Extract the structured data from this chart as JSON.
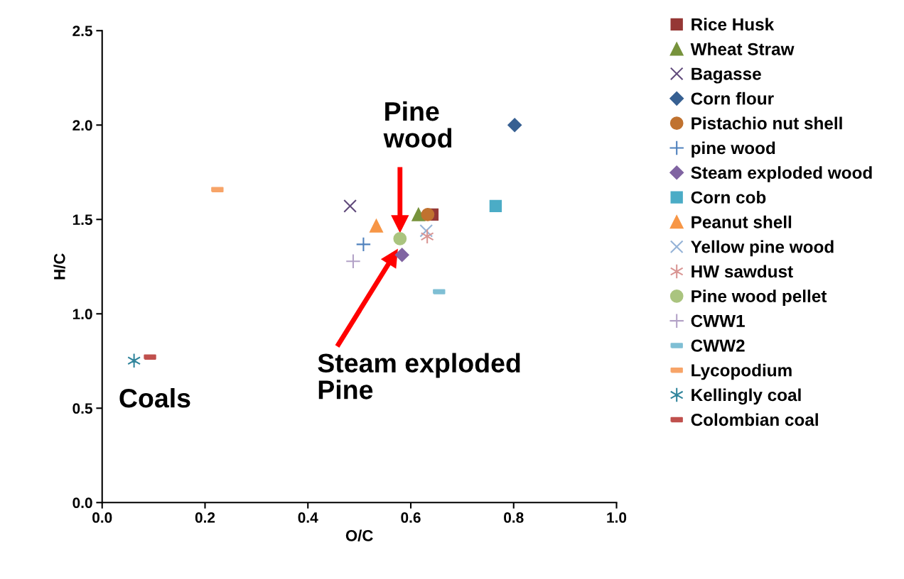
{
  "chart_data": {
    "type": "scatter",
    "xlabel": "O/C",
    "ylabel": "H/C",
    "xlim": [
      0,
      1
    ],
    "ylim": [
      0,
      2.5
    ],
    "xticks": [
      {
        "value": 0,
        "label": "0.0"
      },
      {
        "value": 0.2,
        "label": "0.2"
      },
      {
        "value": 0.4,
        "label": "0.4"
      },
      {
        "value": 0.6,
        "label": "0.6"
      },
      {
        "value": 0.8,
        "label": "0.8"
      },
      {
        "value": 1,
        "label": "1.0"
      }
    ],
    "yticks": [
      {
        "value": 0,
        "label": "0.0"
      },
      {
        "value": 0.5,
        "label": "0.5"
      },
      {
        "value": 1,
        "label": "1.0"
      },
      {
        "value": 1.5,
        "label": "1.5"
      },
      {
        "value": 2,
        "label": "2.0"
      },
      {
        "value": 2.5,
        "label": "2.5"
      }
    ],
    "grid": false,
    "legend": "right",
    "series": [
      {
        "name": "Rice Husk",
        "color": "#953735",
        "marker": "square",
        "x": [
          0.642
        ],
        "values": [
          1.526
        ]
      },
      {
        "name": "Wheat Straw",
        "color": "#77933c",
        "marker": "triangle",
        "x": [
          0.615
        ],
        "values": [
          1.526
        ]
      },
      {
        "name": "Bagasse",
        "color": "#604a7b",
        "marker": "x",
        "x": [
          0.482
        ],
        "values": [
          1.571
        ]
      },
      {
        "name": "Corn flour",
        "color": "#376092",
        "marker": "diamond",
        "x": [
          0.802
        ],
        "values": [
          2.0
        ]
      },
      {
        "name": "Pistachio nut shell",
        "color": "#c0722f",
        "marker": "circle",
        "x": [
          0.633
        ],
        "values": [
          1.526
        ]
      },
      {
        "name": "pine wood",
        "color": "#4f81bd",
        "marker": "plus",
        "x": [
          0.508
        ],
        "values": [
          1.368
        ]
      },
      {
        "name": "Steam exploded wood",
        "color": "#8064a2",
        "marker": "diamond",
        "x": [
          0.583
        ],
        "values": [
          1.312
        ]
      },
      {
        "name": "Corn cob",
        "color": "#4bacc6",
        "marker": "square",
        "x": [
          0.765
        ],
        "values": [
          1.571
        ]
      },
      {
        "name": "Peanut shell",
        "color": "#f79646",
        "marker": "triangle",
        "x": [
          0.533
        ],
        "values": [
          1.466
        ]
      },
      {
        "name": "Yellow pine wood",
        "color": "#95b3d7",
        "marker": "x",
        "x": [
          0.63
        ],
        "values": [
          1.44
        ]
      },
      {
        "name": "HW sawdust",
        "color": "#d99694",
        "marker": "cross",
        "x": [
          0.632
        ],
        "values": [
          1.41
        ]
      },
      {
        "name": "Pine wood pellet",
        "color": "#aac47f",
        "marker": "circle",
        "x": [
          0.579
        ],
        "values": [
          1.398
        ]
      },
      {
        "name": "CWW1",
        "color": "#b3a2c7",
        "marker": "plus",
        "x": [
          0.488
        ],
        "values": [
          1.278
        ]
      },
      {
        "name": "CWW2",
        "color": "#7fbfd4",
        "x": [
          0.655
        ],
        "values": [
          1.117
        ]
      },
      {
        "name": "Lycopodium",
        "color": "#f7a468",
        "x": [
          0.224
        ],
        "values": [
          1.658
        ]
      },
      {
        "name": "Kellingly coal",
        "color": "#31859c",
        "marker": "cross",
        "x": [
          0.062
        ],
        "values": [
          0.752
        ]
      },
      {
        "name": "Colombian coal",
        "color": "#c0504d",
        "x": [
          0.093
        ],
        "values": [
          0.771
        ]
      }
    ],
    "annotations": [
      "Pine\nwood",
      "Steam exploded\nPine",
      "Coals"
    ]
  }
}
